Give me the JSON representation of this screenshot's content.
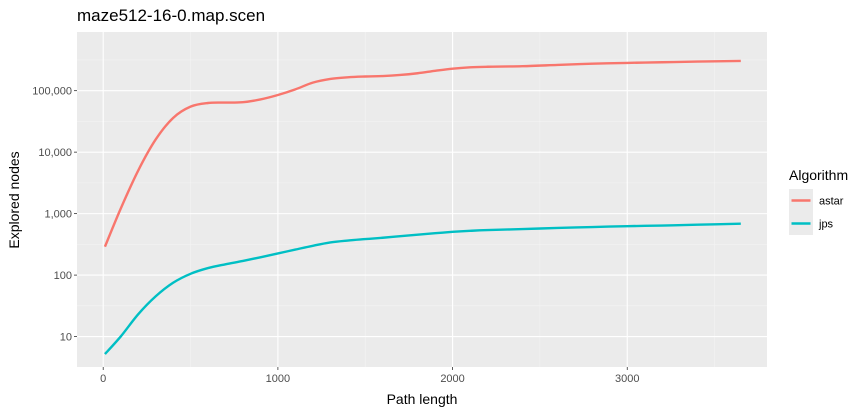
{
  "chart_data": {
    "type": "line",
    "title": "maze512-16-0.map.scen",
    "xlabel": "Path length",
    "ylabel": "Explored nodes",
    "x_scale": "linear",
    "y_scale": "log10",
    "xlim": [
      -150,
      3800
    ],
    "ylim": [
      3.2,
      900000
    ],
    "x_ticks": [
      0,
      1000,
      2000,
      3000
    ],
    "x_tick_labels": [
      "0",
      "1000",
      "2000",
      "3000"
    ],
    "y_ticks": [
      10,
      100,
      1000,
      10000,
      100000
    ],
    "y_tick_labels": [
      "10",
      "100",
      "1,000",
      "10,000",
      "100,000"
    ],
    "grid": true,
    "legend": {
      "title": "Algorithm",
      "position": "right"
    },
    "series": [
      {
        "name": "astar",
        "color": "#f8766d",
        "points": [
          [
            10,
            290
          ],
          [
            100,
            1200
          ],
          [
            200,
            5000
          ],
          [
            300,
            16000
          ],
          [
            400,
            36000
          ],
          [
            500,
            55000
          ],
          [
            600,
            63000
          ],
          [
            700,
            64000
          ],
          [
            800,
            65000
          ],
          [
            900,
            72000
          ],
          [
            1000,
            85000
          ],
          [
            1100,
            105000
          ],
          [
            1200,
            135000
          ],
          [
            1300,
            155000
          ],
          [
            1400,
            165000
          ],
          [
            1500,
            170000
          ],
          [
            1600,
            173000
          ],
          [
            1700,
            180000
          ],
          [
            1800,
            192000
          ],
          [
            1900,
            210000
          ],
          [
            2000,
            228000
          ],
          [
            2100,
            240000
          ],
          [
            2200,
            245000
          ],
          [
            2400,
            250000
          ],
          [
            2600,
            262000
          ],
          [
            2800,
            275000
          ],
          [
            3000,
            283000
          ],
          [
            3200,
            290000
          ],
          [
            3400,
            297000
          ],
          [
            3650,
            305000
          ]
        ]
      },
      {
        "name": "jps",
        "color": "#00bfc4",
        "points": [
          [
            10,
            5.2
          ],
          [
            100,
            10
          ],
          [
            200,
            23
          ],
          [
            300,
            45
          ],
          [
            400,
            75
          ],
          [
            500,
            105
          ],
          [
            600,
            130
          ],
          [
            700,
            150
          ],
          [
            800,
            170
          ],
          [
            900,
            195
          ],
          [
            1000,
            225
          ],
          [
            1100,
            260
          ],
          [
            1200,
            300
          ],
          [
            1300,
            340
          ],
          [
            1400,
            365
          ],
          [
            1500,
            385
          ],
          [
            1600,
            405
          ],
          [
            1700,
            430
          ],
          [
            1800,
            455
          ],
          [
            1900,
            480
          ],
          [
            2000,
            505
          ],
          [
            2100,
            525
          ],
          [
            2200,
            540
          ],
          [
            2400,
            560
          ],
          [
            2600,
            585
          ],
          [
            2800,
            605
          ],
          [
            3000,
            625
          ],
          [
            3200,
            640
          ],
          [
            3400,
            660
          ],
          [
            3650,
            685
          ]
        ]
      }
    ]
  }
}
